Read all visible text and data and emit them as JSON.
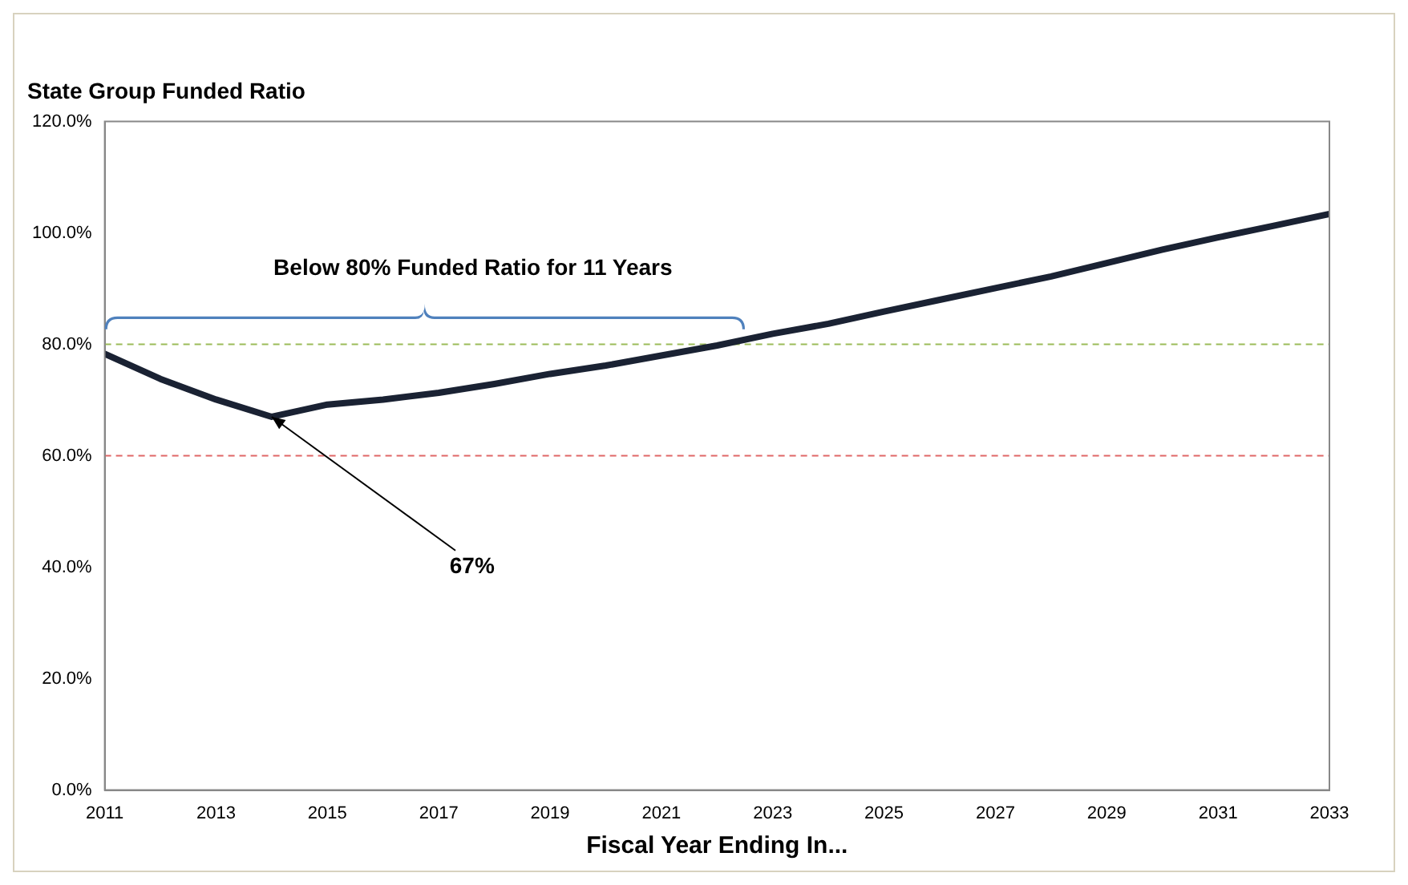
{
  "chart_data": {
    "type": "line",
    "title": "State Group Funded Ratio",
    "xlabel": "Fiscal Year Ending In...",
    "x": [
      2011,
      2012,
      2013,
      2014,
      2015,
      2016,
      2017,
      2018,
      2019,
      2020,
      2021,
      2022,
      2023,
      2024,
      2025,
      2026,
      2027,
      2028,
      2029,
      2030,
      2031,
      2032,
      2033
    ],
    "series": [
      {
        "color": "#1a2233",
        "values": [
          78.3,
          73.8,
          70.1,
          67,
          69.2,
          70.1,
          71.3,
          72.9,
          74.7,
          76.2,
          78,
          79.8,
          81.9,
          83.7,
          85.9,
          88,
          90.1,
          92.2,
          94.6,
          97,
          99.2,
          101.3,
          103.4
        ]
      }
    ],
    "xlim": [
      2011,
      2033
    ],
    "xticks": [
      2011,
      2013,
      2015,
      2017,
      2019,
      2021,
      2023,
      2025,
      2027,
      2029,
      2031,
      2033
    ],
    "ylim": [
      0,
      120
    ],
    "yticks": [
      {
        "value": 0,
        "label": "0.0%"
      },
      {
        "value": 20,
        "label": "20.0%"
      },
      {
        "value": 40,
        "label": "40.0%"
      },
      {
        "value": 60,
        "label": "60.0%"
      },
      {
        "value": 80,
        "label": "80.0%"
      },
      {
        "value": 100,
        "label": "100.0%"
      },
      {
        "value": 120,
        "label": "120.0%"
      }
    ],
    "ref_lines": [
      {
        "axis": "y",
        "value": 80,
        "color": "#9bbb59",
        "line_style": "dashed"
      },
      {
        "axis": "y",
        "value": 60,
        "color": "#e06666",
        "line_style": "dashed"
      }
    ],
    "annotations": [
      "Below 80% Funded Ratio for 11 Years",
      {
        "text": "67%",
        "x": 2014,
        "y": 67
      }
    ],
    "grid": false,
    "legend": false,
    "marker": "none",
    "line_style": "solid"
  }
}
